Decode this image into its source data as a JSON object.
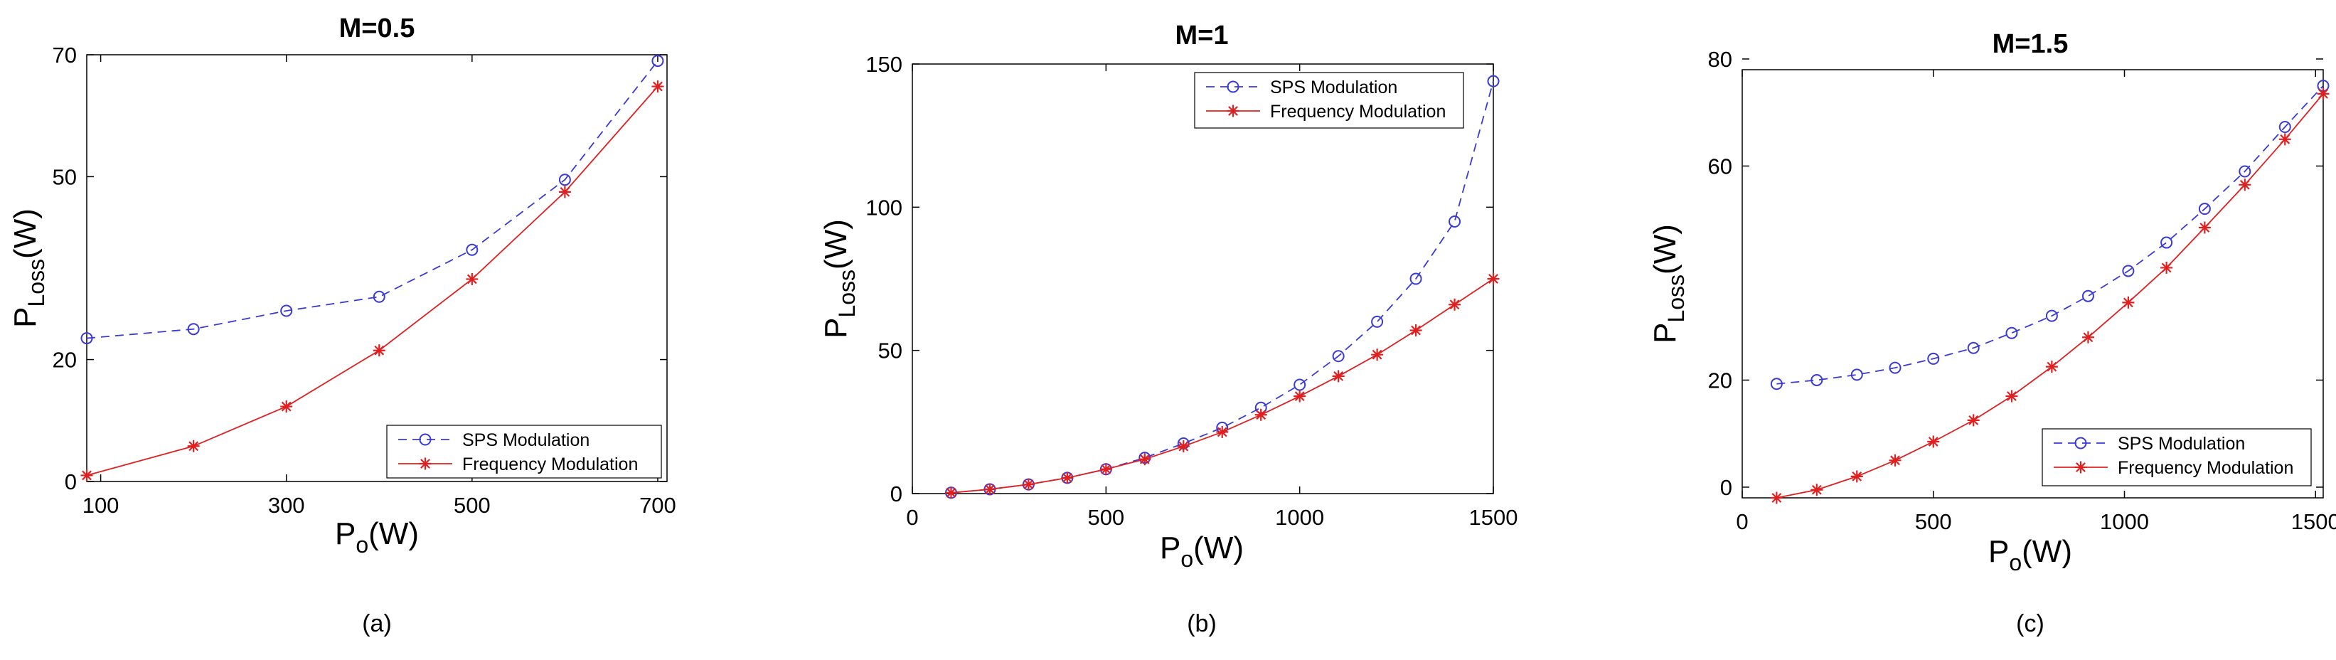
{
  "colors": {
    "sps": "#3a3ad6",
    "freq": "#e02020",
    "axis": "#000000"
  },
  "chart_data": [
    {
      "type": "line",
      "title": "M=0.5",
      "caption": "(a)",
      "xlabel": {
        "main": "P",
        "sub": "o",
        "unit": "(W)"
      },
      "ylabel": {
        "main": "P",
        "sub": "Loss",
        "unit": "(W)"
      },
      "xlim": [
        85,
        710
      ],
      "ylim": [
        0,
        70
      ],
      "xticks": [
        100,
        300,
        500,
        700
      ],
      "xtick_labels": [
        "100",
        "300",
        "500",
        "700"
      ],
      "yticks": [
        0,
        20,
        50,
        70
      ],
      "ytick_labels": [
        "0",
        "20",
        "50",
        "70"
      ],
      "yticks_display_at": [
        0,
        20,
        50,
        70
      ],
      "legend_position": "bottom-right",
      "series": [
        {
          "name": "SPS Modulation",
          "style": "dashed-circle",
          "x": [
            85,
            200,
            300,
            400,
            500,
            600,
            700
          ],
          "y": [
            23.5,
            25.0,
            28.0,
            30.3,
            38.0,
            49.5,
            69.0
          ]
        },
        {
          "name": "Frequency Modulation",
          "style": "solid-star",
          "x": [
            85,
            200,
            300,
            400,
            500,
            600,
            700
          ],
          "y": [
            1.0,
            5.8,
            12.3,
            21.5,
            33.2,
            47.5,
            64.8
          ]
        }
      ]
    },
    {
      "type": "line",
      "title": "M=1",
      "caption": "(b)",
      "xlabel": {
        "main": "P",
        "sub": "o",
        "unit": "(W)"
      },
      "ylabel": {
        "main": "P",
        "sub": "Loss",
        "unit": "(W)"
      },
      "xlim": [
        0,
        1500
      ],
      "ylim": [
        0,
        150
      ],
      "xticks": [
        0,
        500,
        1000,
        1500
      ],
      "xtick_labels": [
        "0",
        "500",
        "1000",
        "1500"
      ],
      "yticks": [
        0,
        50,
        100,
        150
      ],
      "ytick_labels": [
        "0",
        "50",
        "100",
        "150"
      ],
      "yticks_display_at": [
        0,
        50,
        100,
        150
      ],
      "legend_position": "top-right",
      "series": [
        {
          "name": "SPS Modulation",
          "style": "dashed-circle",
          "x": [
            100,
            200,
            300,
            400,
            500,
            600,
            700,
            800,
            900,
            1000,
            1100,
            1200,
            1300,
            1400,
            1500
          ],
          "y": [
            0.3,
            1.5,
            3.2,
            5.5,
            8.5,
            12.5,
            17.5,
            23.0,
            30.0,
            38.0,
            48.0,
            60.0,
            75.0,
            95.0,
            144.0
          ]
        },
        {
          "name": "Frequency Modulation",
          "style": "solid-star",
          "x": [
            100,
            200,
            300,
            400,
            500,
            600,
            700,
            800,
            900,
            1000,
            1100,
            1200,
            1300,
            1400,
            1500
          ],
          "y": [
            0.3,
            1.5,
            3.2,
            5.5,
            8.5,
            12.0,
            16.5,
            21.5,
            27.5,
            34.0,
            41.0,
            48.5,
            57.0,
            66.0,
            75.0
          ]
        }
      ]
    },
    {
      "type": "line",
      "title": "M=1.5",
      "caption": "(c)",
      "xlabel": {
        "main": "P",
        "sub": "o",
        "unit": "(W)"
      },
      "ylabel": {
        "main": "P",
        "sub": "Loss",
        "unit": "(W)"
      },
      "xlim": [
        0,
        1520
      ],
      "ylim": [
        0,
        80
      ],
      "xticks": [
        0,
        500,
        1000,
        1500
      ],
      "xtick_labels": [
        "0",
        "500",
        "1000",
        "1500"
      ],
      "yticks": [
        0,
        20,
        60,
        80
      ],
      "ytick_labels": [
        "0",
        "20",
        "60",
        "80"
      ],
      "yticks_display_at": [
        2,
        22,
        62,
        82
      ],
      "legend_position": "bottom-right",
      "series": [
        {
          "name": "SPS Modulation",
          "style": "dashed-circle",
          "x": [
            90,
            195,
            300,
            400,
            500,
            605,
            705,
            810,
            905,
            1010,
            1110,
            1210,
            1315,
            1420,
            1520
          ],
          "y": [
            21.3,
            22.0,
            23.0,
            24.3,
            26.0,
            28.0,
            30.8,
            34.0,
            37.7,
            42.4,
            47.7,
            54.0,
            61.0,
            69.3,
            77.0
          ]
        },
        {
          "name": "Frequency Modulation",
          "style": "solid-star",
          "x": [
            90,
            195,
            300,
            400,
            500,
            605,
            705,
            810,
            905,
            1010,
            1110,
            1210,
            1315,
            1420,
            1520
          ],
          "y": [
            0.0,
            1.5,
            4.0,
            7.0,
            10.5,
            14.5,
            19.0,
            24.5,
            30.0,
            36.5,
            43.0,
            50.5,
            58.5,
            67.0,
            75.5
          ]
        }
      ]
    }
  ]
}
